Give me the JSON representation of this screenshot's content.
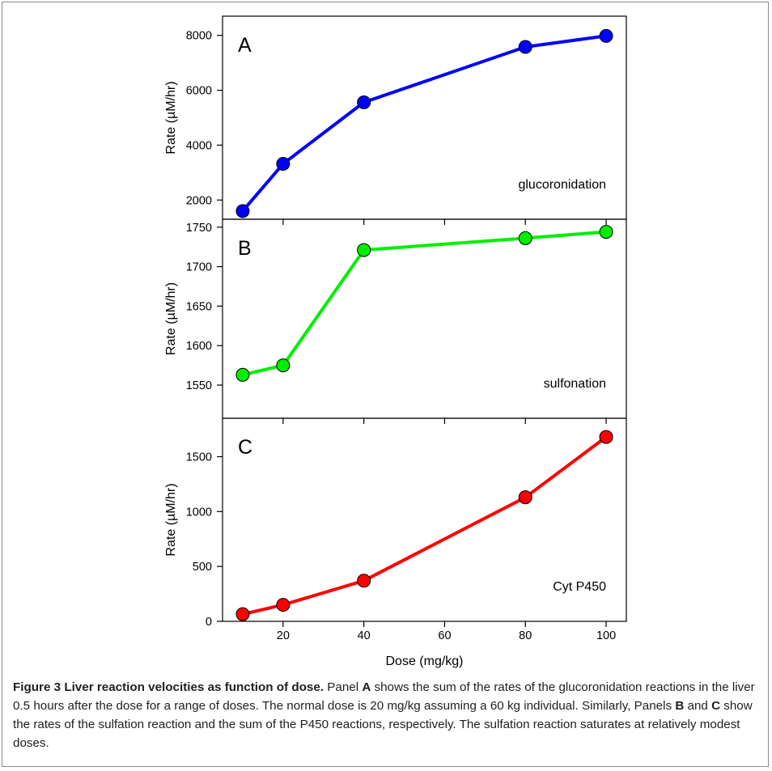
{
  "chart_data": {
    "type": "line",
    "xlabel": "Dose (mg/kg)",
    "xticks": [
      20,
      40,
      60,
      80,
      100
    ],
    "xlim": [
      5,
      105
    ],
    "panels": [
      {
        "letter": "A",
        "annotation": "glucoronidation",
        "ylabel": "Rate (µM/hr)",
        "color": "#0000ff",
        "ylim": [
          1300,
          8700
        ],
        "yticks": [
          2000,
          4000,
          6000,
          8000
        ],
        "x": [
          10,
          20,
          40,
          80,
          100
        ],
        "y": [
          1600,
          3320,
          5560,
          7580,
          7980
        ]
      },
      {
        "letter": "B",
        "annotation": "sulfonation",
        "ylabel": "Rate (µM/hr)",
        "color": "#00ee00",
        "ylim": [
          1508,
          1760
        ],
        "yticks": [
          1550,
          1600,
          1650,
          1700,
          1750
        ],
        "x": [
          10,
          20,
          40,
          80,
          100
        ],
        "y": [
          1563,
          1575,
          1721,
          1736,
          1744
        ]
      },
      {
        "letter": "C",
        "annotation": "Cyt P450",
        "ylabel": "Rate (µM/hr)",
        "color": "#ff0000",
        "ylim": [
          0,
          1850
        ],
        "yticks": [
          0,
          500,
          1000,
          1500
        ],
        "x": [
          10,
          20,
          40,
          80,
          100
        ],
        "y": [
          65,
          150,
          370,
          1130,
          1680
        ]
      }
    ]
  },
  "caption": {
    "label": "Figure 3",
    "title": "Liver reaction velocities as function of dose.",
    "t1": " Panel ",
    "A": "A",
    "t2": " shows the sum of the rates of the glucoronidation reactions in the liver 0.5 hours after the dose for a range of doses. The normal dose is 20 mg/kg assuming a 60 kg individual. Similarly, Panels ",
    "B": "B",
    "t3": " and ",
    "C": "C",
    "t4": " show the rates of the sulfation reaction and the sum of the P450 reactions, respectively. The sulfation reaction saturates at relatively modest doses."
  }
}
